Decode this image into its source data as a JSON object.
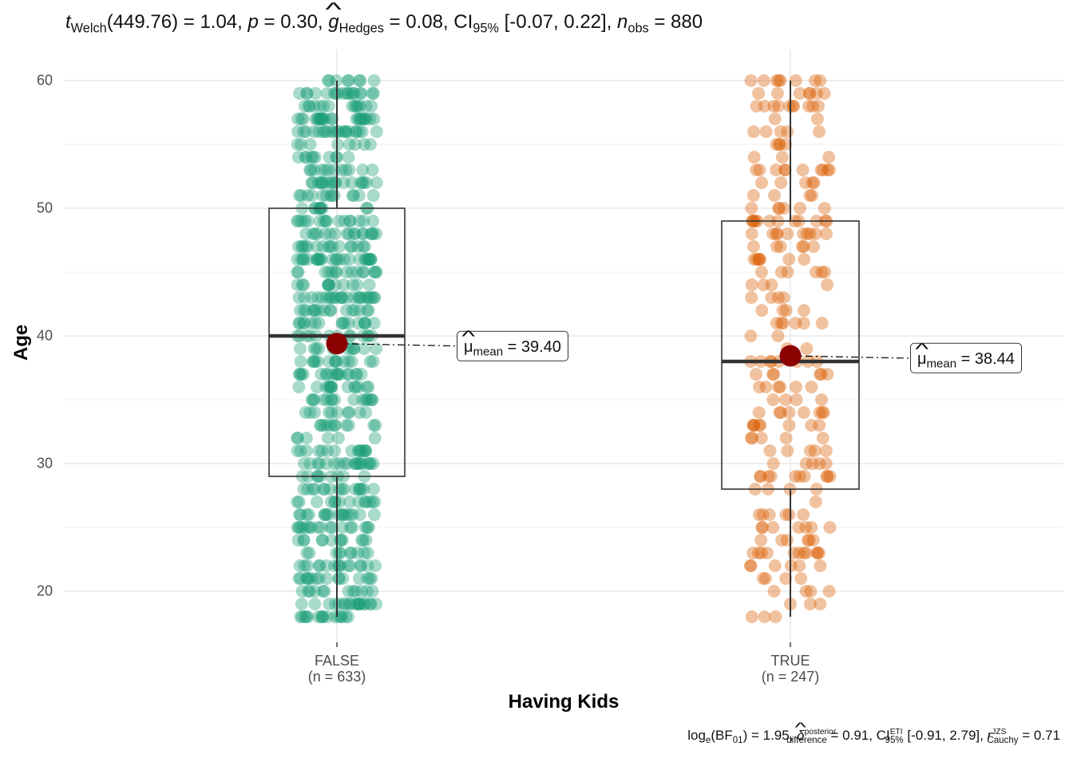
{
  "title": {
    "stat_name": "t",
    "stat_sub": "Welch",
    "df": "(449.76)",
    "stat_val": " = 1.04, ",
    "p_sym": "p",
    "p_val": " = 0.30, ",
    "es_sym": "g",
    "es_sub": "Hedges",
    "es_val": " = 0.08, CI",
    "ci_sub": "95%",
    "ci_val": " [-0.07, 0.22], ",
    "n_sym": "n",
    "n_sub": "obs",
    "n_val": " = 880"
  },
  "caption": {
    "log": "log",
    "log_sub": "e",
    "bf": "(BF",
    "bf_sub": "01",
    "bf_val": ") = 1.95, ",
    "delta": "δ",
    "delta_sup": "posterior",
    "delta_sub": "difference",
    "delta_val": " = 0.91, CI",
    "ci_sup": "ETI",
    "ci_sub": "95%",
    "ci_val": " [-0.91, 2.79], ",
    "r": "r",
    "r_sup": "JZS",
    "r_sub": "Cauchy",
    "r_val": " = 0.71"
  },
  "chart_data": {
    "type": "boxplot-jitter",
    "xlabel": "Having Kids",
    "ylabel": "Age",
    "ylim": [
      15.5,
      62.5
    ],
    "yticks": [
      20,
      30,
      40,
      50,
      60
    ],
    "groups": [
      {
        "name": "FALSE",
        "n_label": "(n = 633)",
        "n": 633,
        "color": "#1b9e77",
        "min": 18,
        "q1": 29,
        "median": 40,
        "q3": 50,
        "max": 60,
        "mean": 39.4,
        "mean_label_mu": "μ",
        "mean_label_sub": "mean",
        "mean_label_val": " = 39.40"
      },
      {
        "name": "TRUE",
        "n_label": "(n = 247)",
        "n": 247,
        "color": "#d95f02",
        "min": 18,
        "q1": 28,
        "median": 38,
        "q3": 49,
        "max": 60,
        "mean": 38.44,
        "mean_label_mu": "μ",
        "mean_label_sub": "mean",
        "mean_label_val": " = 38.44"
      }
    ],
    "mean_point_color": "#8b0000",
    "grid": true
  }
}
